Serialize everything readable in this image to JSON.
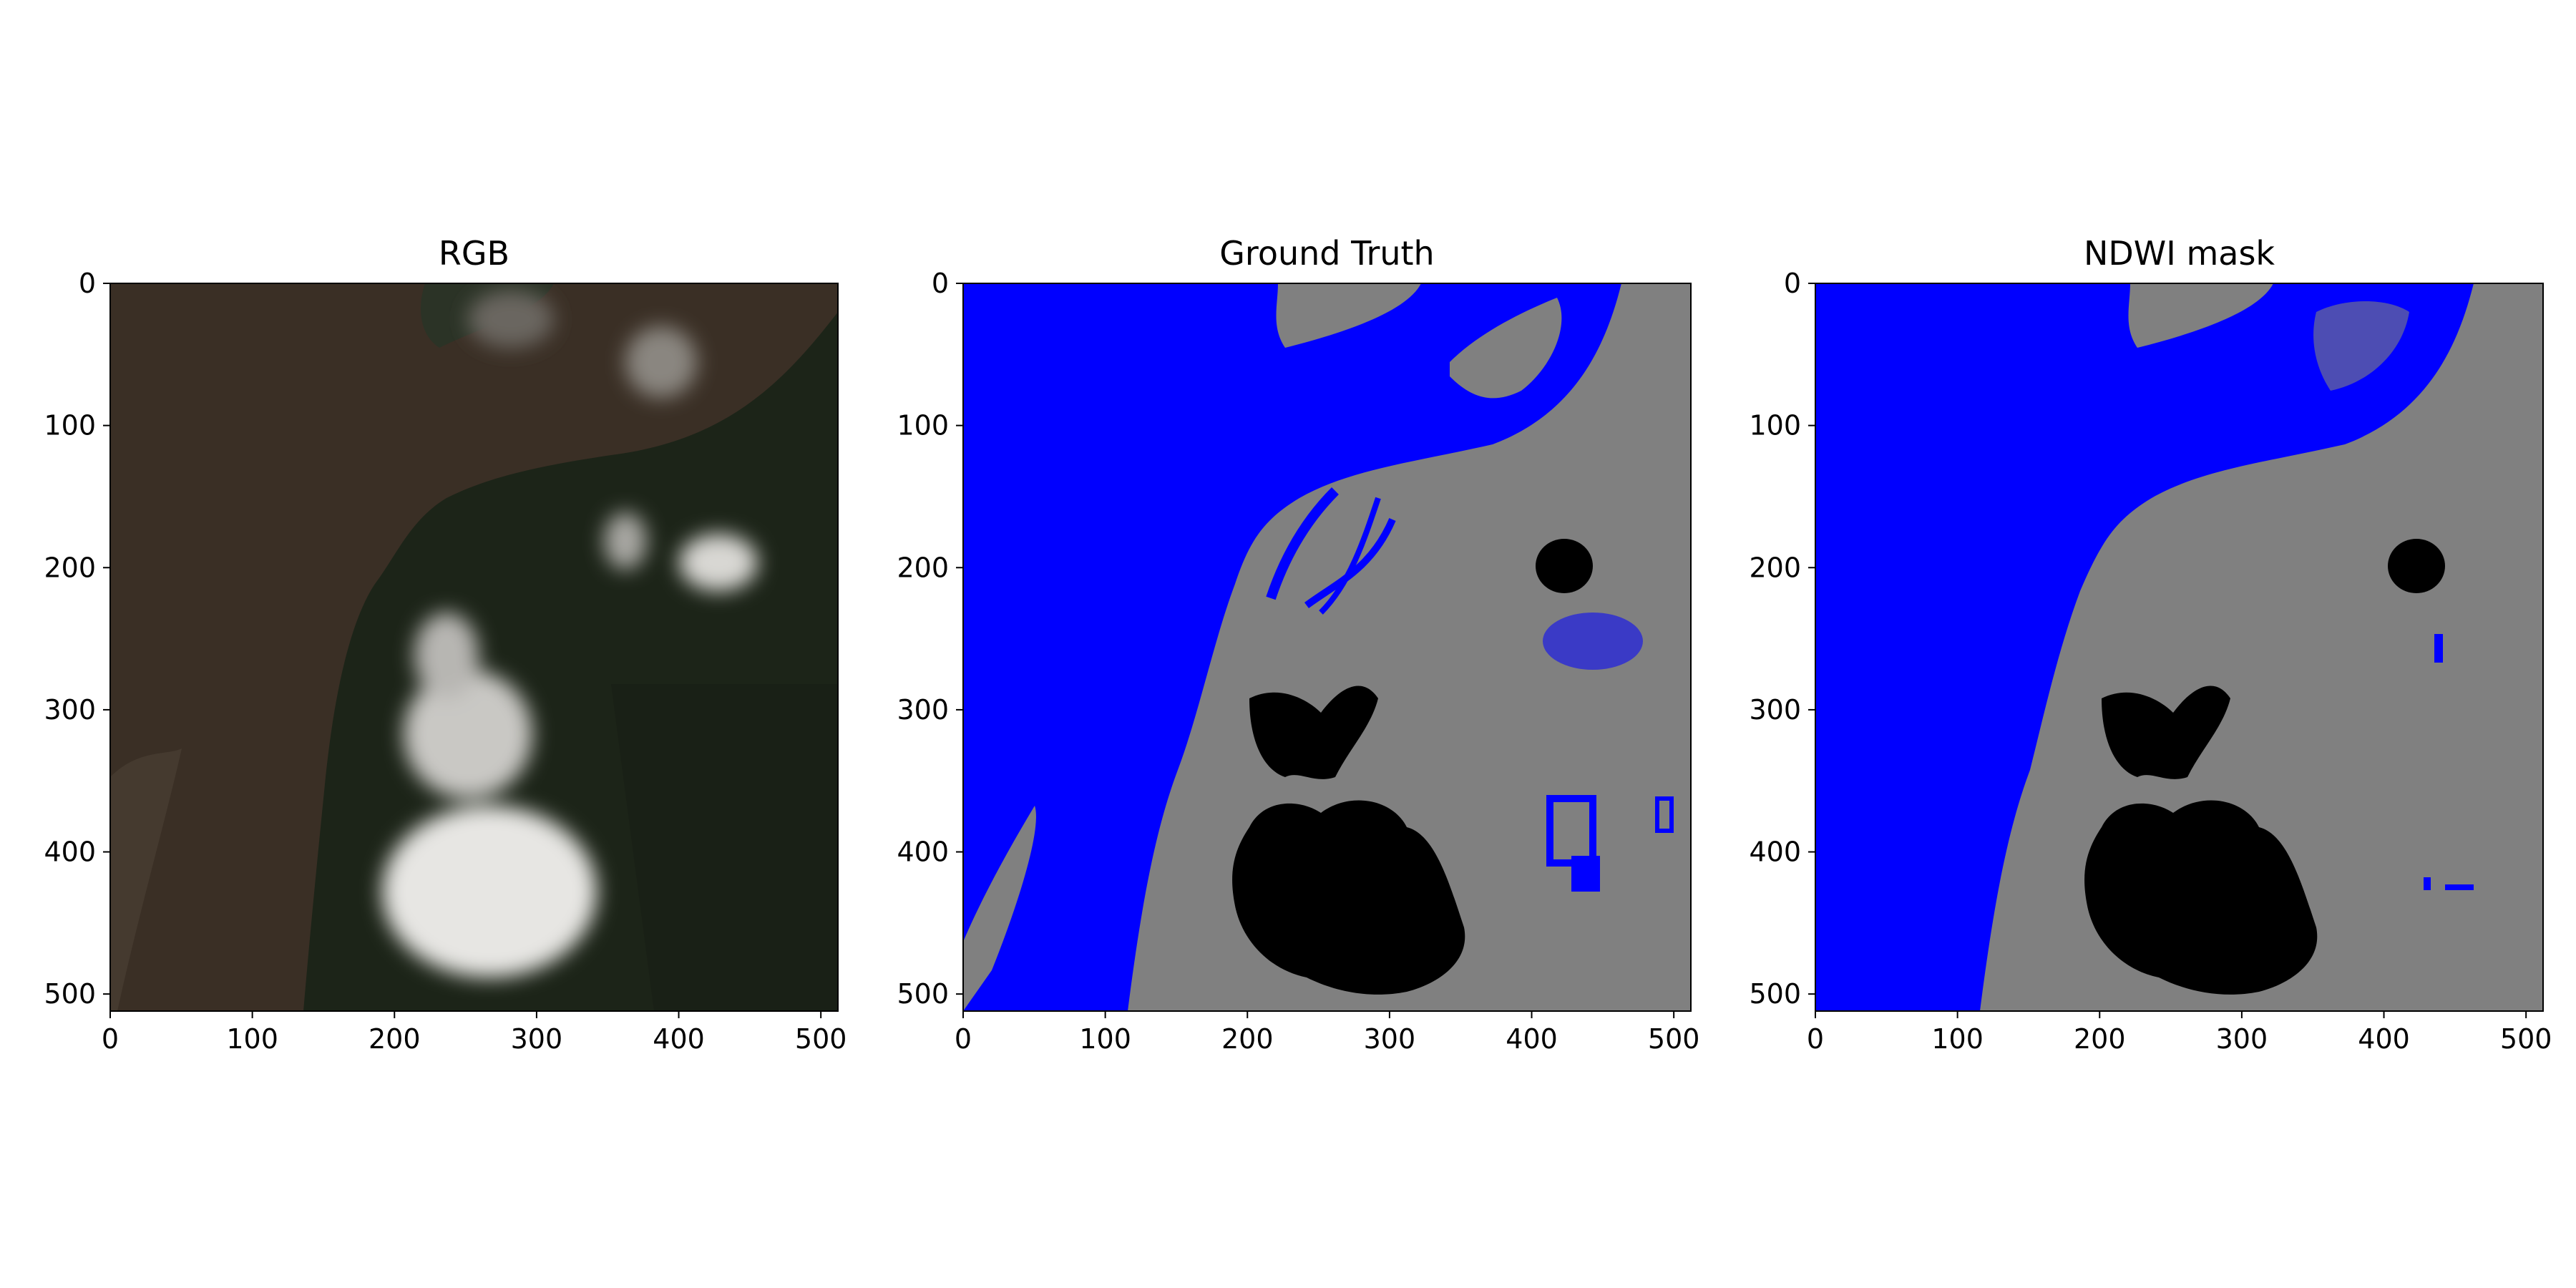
{
  "colors": {
    "water": "#0000ff",
    "land": "#808080",
    "cloud": "#000000",
    "rgb_water": "#3b3026",
    "rgb_land": "#1d2519",
    "rgb_cloud": "#e7e6e4"
  },
  "chart_data": [
    {
      "type": "image",
      "title": "RGB",
      "xlim": [
        0,
        512
      ],
      "ylim": [
        512,
        0
      ],
      "xticks": [
        0,
        100,
        200,
        300,
        400,
        500
      ],
      "yticks": [
        0,
        100,
        200,
        300,
        400,
        500
      ],
      "xtick_labels": [
        "0",
        "100",
        "200",
        "300",
        "400",
        "500"
      ],
      "ytick_labels": [
        "0",
        "100",
        "200",
        "300",
        "400",
        "500"
      ]
    },
    {
      "type": "image",
      "title": "Ground Truth",
      "xlim": [
        0,
        512
      ],
      "ylim": [
        512,
        0
      ],
      "xticks": [
        0,
        100,
        200,
        300,
        400,
        500
      ],
      "yticks": [
        0,
        100,
        200,
        300,
        400,
        500
      ],
      "xtick_labels": [
        "0",
        "100",
        "200",
        "300",
        "400",
        "500"
      ],
      "ytick_labels": [
        "0",
        "100",
        "200",
        "300",
        "400",
        "500"
      ]
    },
    {
      "type": "image",
      "title": "NDWI mask",
      "xlim": [
        0,
        512
      ],
      "ylim": [
        512,
        0
      ],
      "xticks": [
        0,
        100,
        200,
        300,
        400,
        500
      ],
      "yticks": [
        0,
        100,
        200,
        300,
        400,
        500
      ],
      "xtick_labels": [
        "0",
        "100",
        "200",
        "300",
        "400",
        "500"
      ],
      "ytick_labels": [
        "0",
        "100",
        "200",
        "300",
        "400",
        "500"
      ]
    }
  ]
}
